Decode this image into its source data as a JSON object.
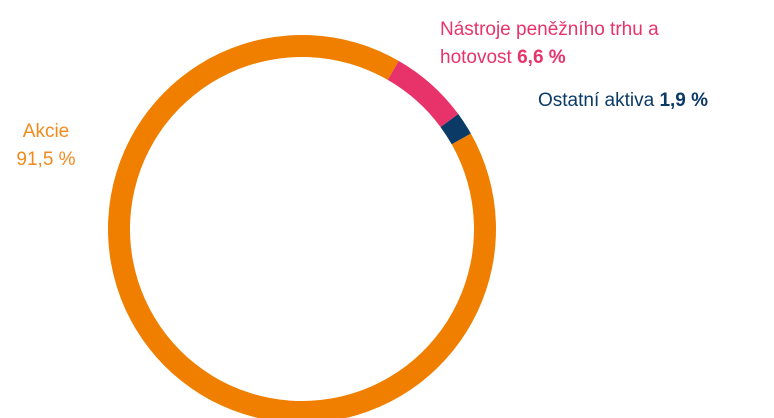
{
  "chart_data": {
    "type": "donut",
    "categories": [
      "Akcie",
      "Nástroje peněžního trhu a hotovost",
      "Ostatní aktiva"
    ],
    "values": [
      91.5,
      6.6,
      1.9
    ],
    "value_labels": [
      "91,5 %",
      "6,6 %",
      "1,9 %"
    ],
    "colors": [
      "#f07f00",
      "#e8336a",
      "#0b3a66"
    ]
  }
}
